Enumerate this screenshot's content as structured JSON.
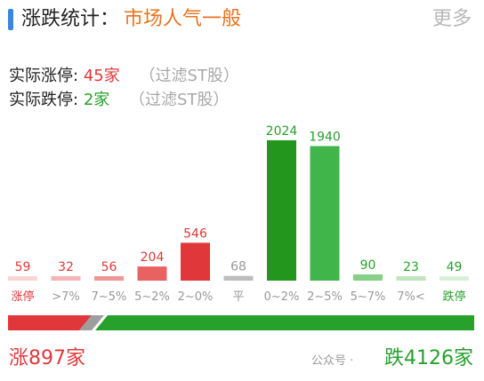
{
  "header": {
    "title": "涨跌统计：",
    "mood": "市场人气一般",
    "more": "更多"
  },
  "stats": {
    "up_label": "实际涨停:",
    "up_value": "45家",
    "up_filter": "（过滤ST股）",
    "down_label": "实际跌停:",
    "down_value": "2家",
    "down_filter": "（过滤ST股）"
  },
  "chart_data": {
    "type": "bar",
    "categories": [
      "涨停",
      ">7%",
      "7~5%",
      "5~2%",
      "2~0%",
      "平",
      "0~2%",
      "2~5%",
      "5~7%",
      "7%<",
      "跌停"
    ],
    "values": [
      59,
      32,
      56,
      204,
      546,
      68,
      2024,
      1940,
      90,
      23,
      49
    ],
    "colors": [
      "#f8d5d5",
      "#f3b5b5",
      "#ef9696",
      "#e96262",
      "#e0383a",
      "#bdbdbd",
      "#23961e",
      "#3fb54a",
      "#86cf86",
      "#bfe5bf",
      "#d9efd9"
    ],
    "label_colors": [
      "#e0383a",
      "#e0383a",
      "#e0383a",
      "#e0383a",
      "#e0383a",
      "#999999",
      "#27a02c",
      "#27a02c",
      "#27a02c",
      "#27a02c",
      "#27a02c"
    ],
    "category_colors": [
      "#e0383a",
      "#999999",
      "#999999",
      "#999999",
      "#999999",
      "#999999",
      "#999999",
      "#999999",
      "#999999",
      "#999999",
      "#27a02c"
    ],
    "ylim": [
      0,
      2100
    ]
  },
  "breadth": {
    "up_fraction": 0.179,
    "up_color": "#e0383a",
    "down_color": "#27a02c",
    "gap_color": "#9e9e9e"
  },
  "footer": {
    "up_total": "涨897家",
    "down_total": "跌4126家",
    "watermark": "公众号 ·"
  }
}
